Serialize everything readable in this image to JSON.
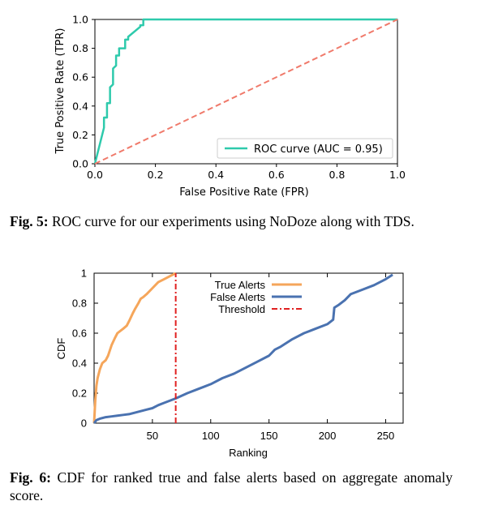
{
  "chart_data": [
    {
      "type": "line",
      "xlabel": "False Positive Rate (FPR)",
      "ylabel": "True Positive Rate (TPR)",
      "xlim": [
        0.0,
        1.0
      ],
      "ylim": [
        0.0,
        1.0
      ],
      "x_ticks": [
        "0.0",
        "0.2",
        "0.4",
        "0.6",
        "0.8",
        "1.0"
      ],
      "y_ticks": [
        "0.0",
        "0.2",
        "0.4",
        "0.6",
        "0.8",
        "1.0"
      ],
      "legend_position": "bottom-right",
      "grid": false,
      "series": [
        {
          "name": "ROC curve (AUC = 0.95)",
          "color": "#2ecaac",
          "style": "solid",
          "x": [
            0.0,
            0.03,
            0.03,
            0.04,
            0.04,
            0.05,
            0.05,
            0.06,
            0.06,
            0.07,
            0.07,
            0.08,
            0.08,
            0.1,
            0.1,
            0.11,
            0.11,
            0.15,
            0.15,
            0.16,
            0.16,
            1.0
          ],
          "y": [
            0.0,
            0.25,
            0.32,
            0.32,
            0.42,
            0.42,
            0.53,
            0.55,
            0.66,
            0.68,
            0.75,
            0.75,
            0.8,
            0.8,
            0.86,
            0.86,
            0.88,
            0.95,
            0.96,
            0.96,
            1.0,
            1.0
          ]
        },
        {
          "name": "",
          "color": "#f07a6b",
          "style": "dashed",
          "x": [
            0.0,
            1.0
          ],
          "y": [
            0.0,
            1.0
          ]
        }
      ]
    },
    {
      "type": "line",
      "xlabel": "Ranking",
      "ylabel": "CDF",
      "xlim": [
        0,
        265
      ],
      "ylim": [
        0,
        1
      ],
      "x_ticks": [
        50,
        100,
        150,
        200,
        250
      ],
      "y_ticks": [
        "0",
        "0.2",
        "0.4",
        "0.6",
        "0.8",
        "1"
      ],
      "legend_position": "top-center",
      "grid": false,
      "series": [
        {
          "name": "True Alerts",
          "color": "#f5a65b",
          "style": "solid",
          "x": [
            0,
            1,
            2,
            3,
            5,
            7,
            10,
            12,
            15,
            18,
            20,
            25,
            28,
            30,
            33,
            35,
            38,
            40,
            42,
            45,
            50,
            55,
            60,
            65,
            70
          ],
          "y": [
            0.0,
            0.15,
            0.25,
            0.3,
            0.36,
            0.4,
            0.42,
            0.45,
            0.52,
            0.57,
            0.6,
            0.63,
            0.65,
            0.68,
            0.73,
            0.76,
            0.8,
            0.83,
            0.84,
            0.86,
            0.9,
            0.94,
            0.96,
            0.98,
            1.0
          ]
        },
        {
          "name": "False Alerts",
          "color": "#4a72b0",
          "style": "solid",
          "x": [
            0,
            2,
            5,
            10,
            15,
            20,
            25,
            30,
            35,
            40,
            45,
            50,
            55,
            60,
            65,
            70,
            80,
            90,
            100,
            110,
            120,
            130,
            140,
            150,
            155,
            160,
            170,
            180,
            190,
            200,
            205,
            206,
            210,
            215,
            220,
            230,
            240,
            250,
            256
          ],
          "y": [
            0.0,
            0.02,
            0.03,
            0.04,
            0.045,
            0.05,
            0.055,
            0.06,
            0.07,
            0.08,
            0.09,
            0.1,
            0.12,
            0.135,
            0.15,
            0.165,
            0.2,
            0.23,
            0.26,
            0.3,
            0.33,
            0.37,
            0.41,
            0.45,
            0.49,
            0.51,
            0.56,
            0.6,
            0.63,
            0.66,
            0.69,
            0.77,
            0.79,
            0.82,
            0.86,
            0.89,
            0.92,
            0.96,
            0.99
          ]
        },
        {
          "name": "Threshold",
          "color": "#e02020",
          "style": "dashdot",
          "x": [
            70,
            70
          ],
          "y": [
            0,
            1
          ]
        }
      ]
    }
  ],
  "captions": {
    "fig5_label": "Fig. 5:",
    "fig5_text": "ROC curve for our experiments using NoDoze along with TDS.",
    "fig6_label": "Fig. 6:",
    "fig6_text": "CDF for ranked true and false alerts based on aggregate anomaly score."
  }
}
